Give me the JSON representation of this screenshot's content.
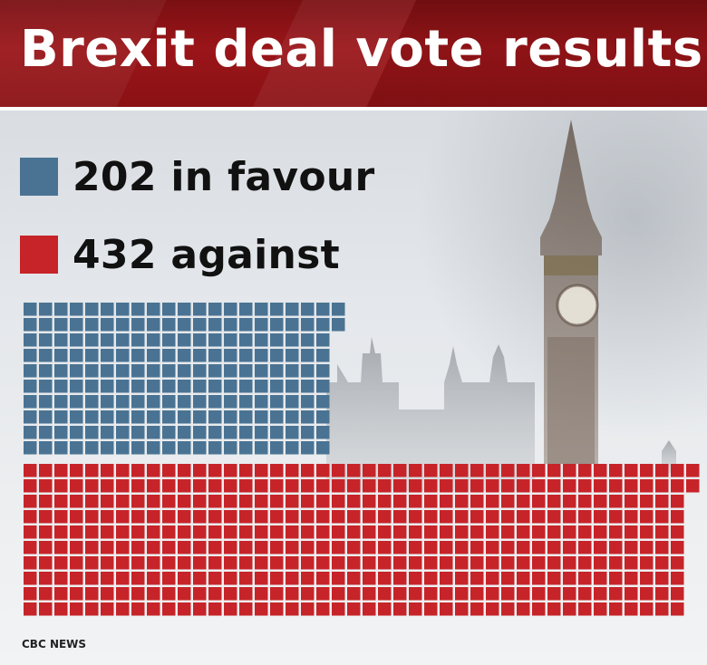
{
  "header": {
    "title": "Brexit deal vote results"
  },
  "legend": [
    {
      "label": "202 in favour",
      "color": "#4a7393"
    },
    {
      "label": "432 against",
      "color": "#c62429"
    }
  ],
  "chart_data": {
    "type": "waffle",
    "title": "Brexit deal vote results",
    "series": [
      {
        "name": "in favour",
        "value": 202,
        "color": "#4a7393",
        "columns": 21
      },
      {
        "name": "against",
        "value": 432,
        "color": "#c62429",
        "columns": 44
      }
    ],
    "rows_per_block": 10,
    "unit": "vote"
  },
  "footer": {
    "source": "CBC NEWS"
  }
}
